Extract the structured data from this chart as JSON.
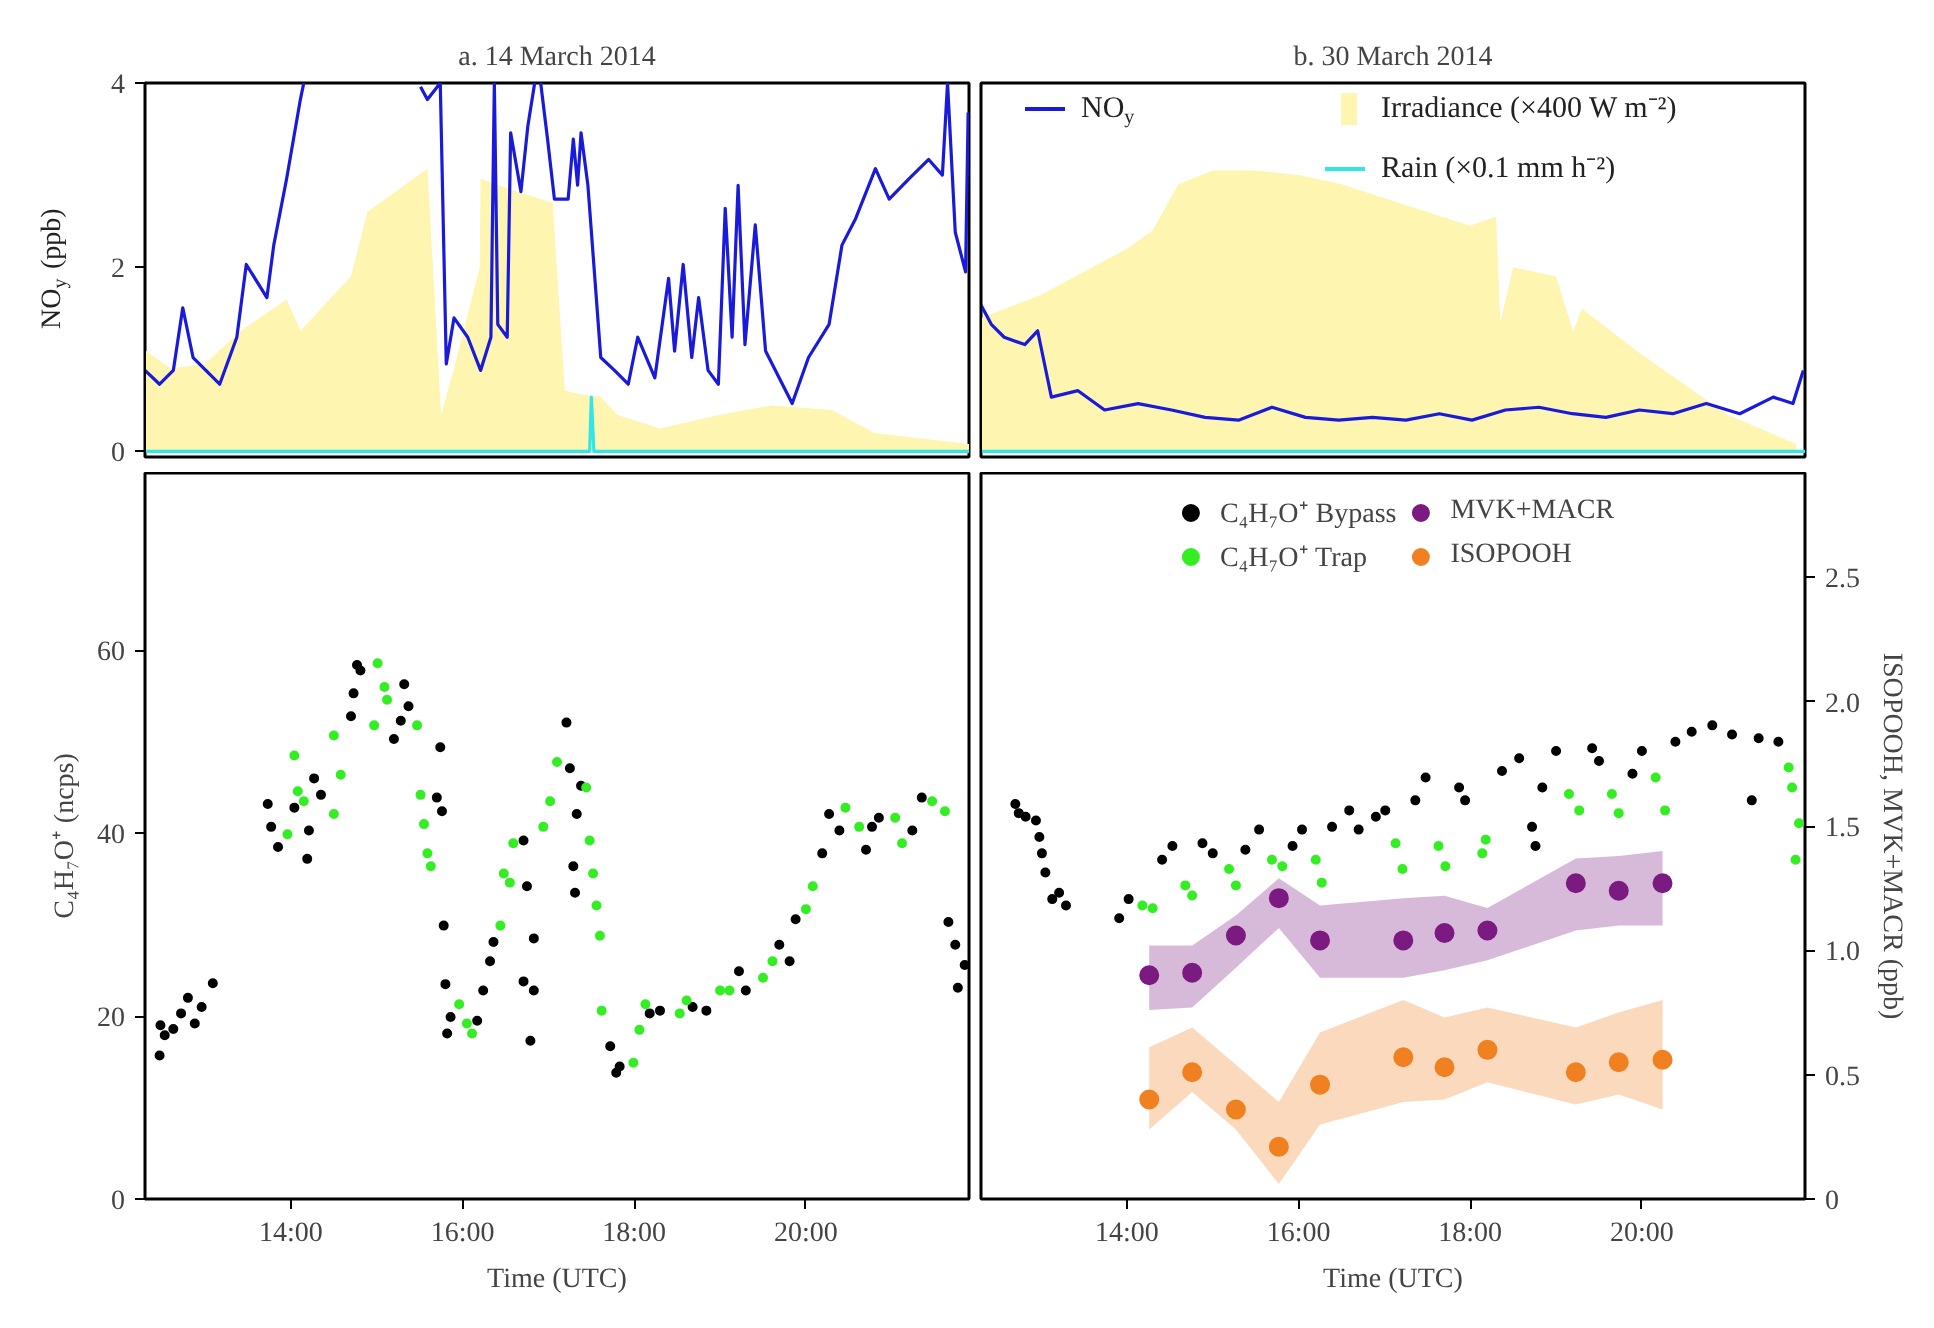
{
  "chart_data": [
    {
      "type": "line",
      "title": "a. 14 March 2014",
      "ylabel": "NO$_{y}$ (ppb)",
      "xlim": [
        12.3,
        21.9
      ],
      "ylim": [
        -0.06,
        4
      ],
      "yticks": [
        0,
        2,
        4
      ],
      "tick_labels": "y",
      "grid": false,
      "legend": false,
      "series": [
        {
          "type": "area",
          "color": "#fdf5b0",
          "x": [
            12.3,
            12.6,
            13.0,
            13.4,
            13.95,
            14.11,
            14.7,
            14.89,
            15.59,
            15.75,
            15.9,
            16.2,
            16.21,
            16.7,
            17.05,
            17.19,
            17.5,
            17.6,
            17.8,
            18.3,
            19.0,
            19.6,
            20.3,
            20.8,
            21.9
          ],
          "values": [
            1.1,
            0.9,
            0.95,
            1.3,
            1.65,
            1.31,
            1.9,
            2.6,
            3.07,
            0.4,
            0.9,
            2.0,
            2.96,
            2.8,
            2.7,
            0.66,
            0.6,
            0.6,
            0.4,
            0.25,
            0.4,
            0.5,
            0.45,
            0.2,
            0.08
          ]
        },
        {
          "type": "line",
          "color": "#33e6e6",
          "x": [
            12.3,
            17.48,
            17.5,
            17.53,
            21.9
          ],
          "values": [
            0,
            0,
            0.59,
            0,
            0
          ]
        },
        {
          "type": "line",
          "color": "#1a1adb",
          "x": [
            12.3,
            12.47,
            12.63,
            12.74,
            12.86,
            13.17,
            13.37,
            13.48,
            13.72,
            13.8,
            13.95,
            14.11,
            14.15,
            14.2,
            15.5,
            15.51,
            15.59,
            15.74,
            15.81,
            15.9,
            16.06,
            16.21,
            16.33,
            16.37,
            16.41,
            16.52,
            16.56,
            16.68,
            16.76,
            16.84,
            16.87,
            16.91,
            16.99,
            17.07,
            17.23,
            17.29,
            17.34,
            17.38,
            17.46,
            17.61,
            17.77,
            17.93,
            18.04,
            18.24,
            18.4,
            18.47,
            18.57,
            18.67,
            18.75,
            18.86,
            18.98,
            19.06,
            19.14,
            19.21,
            19.29,
            19.41,
            19.53,
            19.84,
            20.03,
            20.27,
            20.42,
            20.58,
            20.81,
            20.97,
            21.2,
            21.43,
            21.59,
            21.65,
            21.74,
            21.86,
            21.89
          ],
          "values": [
            0.88,
            0.73,
            0.88,
            1.56,
            1.02,
            0.73,
            1.24,
            2.03,
            1.67,
            2.24,
            2.96,
            3.82,
            4.0,
            null,
            null,
            3.96,
            3.82,
            4.0,
            0.95,
            1.45,
            1.24,
            0.88,
            1.24,
            4.0,
            1.38,
            1.24,
            3.46,
            2.82,
            3.53,
            4.0,
            null,
            4.0,
            3.39,
            2.74,
            2.74,
            3.39,
            2.89,
            3.46,
            2.89,
            1.02,
            0.88,
            0.73,
            1.24,
            0.8,
            1.88,
            1.09,
            2.03,
            1.02,
            1.67,
            0.88,
            0.73,
            2.64,
            1.24,
            2.89,
            1.16,
            2.46,
            1.09,
            0.52,
            1.02,
            1.38,
            2.24,
            2.53,
            3.07,
            2.74,
            2.96,
            3.17,
            3.0,
            4.0,
            2.38,
            1.95,
            3.68
          ]
        }
      ]
    },
    {
      "type": "line",
      "title": "b. 30 March 2014",
      "xlim": [
        12.3,
        21.9
      ],
      "ylim": [
        -0.06,
        4
      ],
      "tick_labels": false,
      "grid": false,
      "legend": "top",
      "series": [
        {
          "type": "line",
          "name": "NO$_{y}$",
          "color": "#1a1adb",
          "x": [
            12.3,
            12.42,
            12.57,
            12.81,
            12.96,
            13.04,
            13.12,
            13.43,
            13.74,
            14.13,
            14.52,
            14.91,
            15.3,
            15.69,
            16.08,
            16.47,
            16.86,
            17.25,
            17.64,
            18.02,
            18.41,
            18.8,
            19.19,
            19.58,
            19.97,
            20.36,
            20.75,
            21.14,
            21.53,
            21.76,
            21.88
          ],
          "values": [
            1.59,
            1.38,
            1.24,
            1.16,
            1.31,
            0.95,
            0.59,
            0.66,
            0.45,
            0.52,
            0.45,
            0.37,
            0.34,
            0.48,
            0.37,
            0.34,
            0.37,
            0.34,
            0.41,
            0.34,
            0.45,
            0.48,
            0.41,
            0.37,
            0.45,
            0.41,
            0.52,
            0.41,
            0.59,
            0.52,
            0.88
          ]
        },
        {
          "type": "area",
          "name": "Irradiance (×400 W m⁻²)",
          "color": "#fdf5b0",
          "x": [
            12.3,
            13.0,
            14.0,
            14.3,
            14.6,
            15.0,
            15.5,
            16.0,
            16.5,
            17.0,
            17.5,
            18.0,
            18.3,
            18.35,
            18.5,
            19.0,
            19.2,
            19.3,
            20.0,
            21.0,
            21.8
          ],
          "values": [
            1.45,
            1.7,
            2.2,
            2.4,
            2.9,
            3.05,
            3.05,
            3.0,
            2.9,
            2.75,
            2.6,
            2.45,
            2.55,
            1.4,
            2.0,
            1.9,
            1.3,
            1.55,
            1.05,
            0.4,
            0.08
          ]
        },
        {
          "type": "line",
          "name": "Rain (×0.1 mm h⁻²)",
          "color": "#33e6e6",
          "x": [
            12.3,
            21.9
          ],
          "values": [
            0,
            0
          ]
        }
      ]
    },
    {
      "type": "scatter",
      "xlabel": "Time (UTC)",
      "ylabel": "C₄H₇O⁺ (ncps)",
      "xlim": [
        12.3,
        21.9
      ],
      "ylim": [
        0,
        79.4
      ],
      "xticks": [
        {
          "value": 14,
          "label": "14:00"
        },
        {
          "value": 16,
          "label": "16:00"
        },
        {
          "value": 18,
          "label": "18:00"
        },
        {
          "value": 20,
          "label": "20:00"
        }
      ],
      "yticks": [
        0,
        20,
        40,
        60
      ],
      "grid": false,
      "legend": false,
      "marker": "circle",
      "series": [
        {
          "color": "#000000",
          "x": [
            12.47,
            12.48,
            12.53,
            12.63,
            12.72,
            12.8,
            12.88,
            12.96,
            13.09,
            13.73,
            13.77,
            13.85,
            14.04,
            14.19,
            14.21,
            14.27,
            14.35,
            14.7,
            14.73,
            14.77,
            14.81,
            15.2,
            15.28,
            15.32,
            15.37,
            15.7,
            15.74,
            15.76,
            15.78,
            15.8,
            15.82,
            15.86,
            16.17,
            16.24,
            16.32,
            16.36,
            16.71,
            16.75,
            16.71,
            16.79,
            16.83,
            16.83,
            17.21,
            17.25,
            17.29,
            17.31,
            17.33,
            17.38,
            17.72,
            17.79,
            17.83,
            18.18,
            18.3,
            18.68,
            18.84,
            19.22,
            19.3,
            19.69,
            19.81,
            19.88,
            20.19,
            20.27,
            20.39,
            20.7,
            20.77,
            20.85,
            21.24,
            21.35,
            21.66,
            21.74,
            21.77,
            21.85
          ],
          "values": [
            15.7,
            19.0,
            17.9,
            18.6,
            20.3,
            22.0,
            19.2,
            21.0,
            23.6,
            43.2,
            40.7,
            38.5,
            42.8,
            37.2,
            40.3,
            46.0,
            44.2,
            52.8,
            55.3,
            58.4,
            57.8,
            50.3,
            52.3,
            56.3,
            53.9,
            43.9,
            49.4,
            42.4,
            29.9,
            23.5,
            18.1,
            19.9,
            19.5,
            22.8,
            26.0,
            28.1,
            39.2,
            34.2,
            23.8,
            17.3,
            22.8,
            28.5,
            52.1,
            47.1,
            36.4,
            33.5,
            42.1,
            45.2,
            16.7,
            13.8,
            14.5,
            20.3,
            20.6,
            21.0,
            20.6,
            24.9,
            22.8,
            27.8,
            26.0,
            30.6,
            37.8,
            42.1,
            40.3,
            38.2,
            40.7,
            41.7,
            40.3,
            43.9,
            30.3,
            27.8,
            23.1,
            25.6
          ]
        },
        {
          "color": "#33ee22",
          "x": [
            13.96,
            14.04,
            14.08,
            14.15,
            14.5,
            14.5,
            14.58,
            14.97,
            15.01,
            15.09,
            15.12,
            15.47,
            15.51,
            15.55,
            15.59,
            15.63,
            15.96,
            16.05,
            16.11,
            16.44,
            16.48,
            16.55,
            16.59,
            16.94,
            17.02,
            17.1,
            17.44,
            17.48,
            17.52,
            17.56,
            17.6,
            17.62,
            17.99,
            18.06,
            18.13,
            18.53,
            18.61,
            19.0,
            19.11,
            19.5,
            19.61,
            20.0,
            20.08,
            20.46,
            20.62,
            21.04,
            21.12,
            21.47,
            21.62
          ],
          "values": [
            39.9,
            48.5,
            44.6,
            43.5,
            50.7,
            42.1,
            46.4,
            51.8,
            58.6,
            56.0,
            54.6,
            51.8,
            44.2,
            41.0,
            37.8,
            36.4,
            21.3,
            19.2,
            18.1,
            29.9,
            35.6,
            34.6,
            38.9,
            40.7,
            43.5,
            47.8,
            45.0,
            39.2,
            35.6,
            32.1,
            28.8,
            20.6,
            14.9,
            18.5,
            21.3,
            20.3,
            21.7,
            22.8,
            22.8,
            24.2,
            26.0,
            31.7,
            34.2,
            42.8,
            40.7,
            41.7,
            38.9,
            43.5,
            42.4
          ]
        }
      ]
    },
    {
      "type": "scatter",
      "xlabel": "Time (UTC)",
      "y2label": "ISOPOOH, MVK+MACR (ppb)",
      "xlim": [
        12.3,
        21.9
      ],
      "ylim": [
        0,
        79.4
      ],
      "y2lim": [
        0,
        2.92
      ],
      "xticks": [
        {
          "value": 14,
          "label": "14:00"
        },
        {
          "value": 16,
          "label": "16:00"
        },
        {
          "value": 18,
          "label": "18:00"
        },
        {
          "value": 20,
          "label": "20:00"
        }
      ],
      "y2ticks": [
        0,
        0.5,
        {
          "value": 1,
          "label": "1.0"
        },
        1.5,
        {
          "value": 2,
          "label": "2.0"
        },
        2.5
      ],
      "tick_labels": [
        "x",
        "y2"
      ],
      "grid": false,
      "legend": "top",
      "marker": "circle",
      "series": [
        {
          "name": "C₄H₇O⁺ Bypass",
          "color": "#000000",
          "x": [
            12.7,
            12.74,
            12.82,
            12.94,
            12.98,
            13.01,
            13.05,
            13.13,
            13.21,
            13.29,
            13.91,
            14.02,
            14.41,
            14.53,
            14.88,
            15.0,
            15.38,
            15.54,
            15.93,
            16.04,
            16.39,
            16.59,
            16.7,
            16.9,
            17.01,
            17.36,
            17.48,
            17.87,
            17.94,
            18.37,
            18.57,
            18.72,
            18.76,
            18.84,
            19.0,
            19.42,
            19.5,
            19.89,
            20.0,
            20.39,
            20.58,
            20.82,
            21.05,
            21.28,
            21.36,
            21.59
          ],
          "values": [
            43.2,
            42.2,
            41.8,
            41.4,
            39.6,
            37.8,
            35.7,
            32.8,
            33.5,
            32.1,
            30.7,
            32.8,
            37.1,
            38.6,
            38.9,
            37.8,
            38.2,
            40.4,
            38.6,
            40.4,
            40.7,
            42.5,
            40.4,
            41.8,
            42.5,
            43.6,
            46.1,
            45.0,
            43.6,
            46.8,
            48.2,
            40.7,
            38.6,
            45.0,
            49.0,
            49.3,
            47.9,
            46.5,
            49.0,
            50.0,
            51.1,
            51.8,
            50.8,
            43.6,
            50.4,
            50.0
          ]
        },
        {
          "name": "C₄H₇O⁺ Trap",
          "color": "#33ee22",
          "x": [
            14.18,
            14.3,
            14.68,
            14.76,
            15.19,
            15.27,
            15.69,
            15.81,
            16.2,
            16.27,
            17.13,
            17.21,
            17.63,
            17.71,
            18.18,
            18.14,
            19.15,
            19.27,
            19.65,
            19.73,
            20.16,
            20.27,
            21.71,
            21.75,
            21.83,
            21.79
          ],
          "values": [
            32.1,
            31.8,
            34.3,
            33.2,
            36.1,
            34.3,
            37.1,
            36.4,
            37.1,
            34.6,
            38.9,
            36.1,
            38.6,
            36.4,
            39.3,
            37.8,
            44.3,
            42.5,
            44.3,
            42.2,
            46.1,
            42.5,
            47.2,
            45.0,
            41.1,
            37.1
          ]
        },
        {
          "name": "MVK+MACR",
          "color": "#7b1a80",
          "axis": "y2",
          "x": [
            14.26,
            14.76,
            15.27,
            15.77,
            16.25,
            17.22,
            17.7,
            18.2,
            19.23,
            19.73,
            20.24
          ],
          "values": [
            0.9,
            0.91,
            1.06,
            1.21,
            1.04,
            1.04,
            1.07,
            1.08,
            1.27,
            1.24,
            1.27
          ],
          "lower": [
            0.76,
            0.77,
            0.93,
            1.09,
            0.89,
            0.89,
            0.92,
            0.96,
            1.08,
            1.1,
            1.1
          ],
          "upper": [
            1.02,
            1.02,
            1.14,
            1.29,
            1.18,
            1.21,
            1.22,
            1.17,
            1.37,
            1.38,
            1.4
          ]
        },
        {
          "name": "ISOPOOH",
          "color": "#f08020",
          "axis": "y2",
          "x": [
            14.26,
            14.76,
            15.27,
            15.77,
            16.25,
            17.22,
            17.7,
            18.2,
            19.23,
            19.73,
            20.24
          ],
          "values": [
            0.4,
            0.51,
            0.36,
            0.21,
            0.46,
            0.57,
            0.53,
            0.6,
            0.51,
            0.55,
            0.56
          ],
          "lower": [
            0.28,
            0.43,
            0.28,
            0.06,
            0.3,
            0.39,
            0.4,
            0.47,
            0.38,
            0.42,
            0.36
          ],
          "upper": [
            0.61,
            0.69,
            0.54,
            0.39,
            0.67,
            0.8,
            0.73,
            0.77,
            0.69,
            0.75,
            0.8
          ]
        }
      ]
    }
  ]
}
